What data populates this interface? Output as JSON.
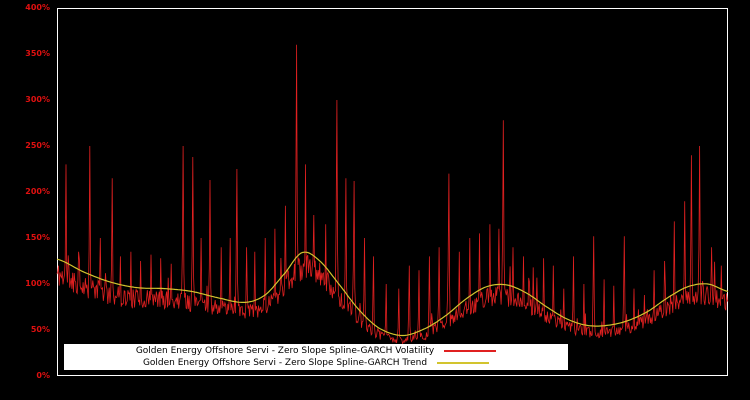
{
  "chart_data": {
    "type": "line",
    "title": "",
    "xlabel": "",
    "ylabel": "",
    "ylim": [
      0,
      400
    ],
    "y_ticks": [
      "0%",
      "50%",
      "100%",
      "150%",
      "200%",
      "250%",
      "300%",
      "350%",
      "400%"
    ],
    "axis_label_color": "#e01010",
    "background": "#000000",
    "frame_color": "#ffffff",
    "legend_position": "bottom-center",
    "grid": false,
    "series": [
      {
        "name": "Golden Energy Offshore Servi - Zero Slope Spline-GARCH Volatility",
        "color": "#e02020"
      },
      {
        "name": "Golden Energy Offshore Servi - Zero Slope Spline-GARCH Trend",
        "color": "#d2c42e"
      }
    ],
    "trend_points": [
      [
        0.0,
        127
      ],
      [
        0.04,
        113
      ],
      [
        0.08,
        102
      ],
      [
        0.12,
        96
      ],
      [
        0.16,
        95
      ],
      [
        0.2,
        92
      ],
      [
        0.24,
        85
      ],
      [
        0.28,
        80
      ],
      [
        0.31,
        88
      ],
      [
        0.34,
        112
      ],
      [
        0.365,
        134
      ],
      [
        0.39,
        126
      ],
      [
        0.42,
        100
      ],
      [
        0.45,
        72
      ],
      [
        0.48,
        52
      ],
      [
        0.515,
        44
      ],
      [
        0.55,
        52
      ],
      [
        0.58,
        66
      ],
      [
        0.61,
        84
      ],
      [
        0.64,
        97
      ],
      [
        0.67,
        99
      ],
      [
        0.7,
        90
      ],
      [
        0.73,
        75
      ],
      [
        0.76,
        62
      ],
      [
        0.79,
        55
      ],
      [
        0.82,
        55
      ],
      [
        0.85,
        60
      ],
      [
        0.88,
        70
      ],
      [
        0.91,
        85
      ],
      [
        0.94,
        97
      ],
      [
        0.97,
        100
      ],
      [
        1.0,
        92
      ]
    ],
    "spikes": [
      [
        0.013,
        230
      ],
      [
        0.032,
        135
      ],
      [
        0.049,
        250
      ],
      [
        0.065,
        150
      ],
      [
        0.082,
        215
      ],
      [
        0.095,
        130
      ],
      [
        0.11,
        135
      ],
      [
        0.125,
        125
      ],
      [
        0.14,
        132
      ],
      [
        0.155,
        128
      ],
      [
        0.17,
        122
      ],
      [
        0.188,
        250
      ],
      [
        0.202,
        238
      ],
      [
        0.215,
        150
      ],
      [
        0.228,
        213
      ],
      [
        0.245,
        140
      ],
      [
        0.258,
        150
      ],
      [
        0.268,
        225
      ],
      [
        0.282,
        140
      ],
      [
        0.295,
        135
      ],
      [
        0.31,
        150
      ],
      [
        0.325,
        160
      ],
      [
        0.34,
        185
      ],
      [
        0.357,
        360
      ],
      [
        0.37,
        230
      ],
      [
        0.383,
        175
      ],
      [
        0.4,
        165
      ],
      [
        0.417,
        300
      ],
      [
        0.43,
        215
      ],
      [
        0.443,
        212
      ],
      [
        0.458,
        150
      ],
      [
        0.472,
        130
      ],
      [
        0.49,
        100
      ],
      [
        0.51,
        95
      ],
      [
        0.525,
        120
      ],
      [
        0.54,
        115
      ],
      [
        0.555,
        130
      ],
      [
        0.57,
        140
      ],
      [
        0.584,
        220
      ],
      [
        0.6,
        135
      ],
      [
        0.615,
        150
      ],
      [
        0.63,
        155
      ],
      [
        0.645,
        165
      ],
      [
        0.658,
        160
      ],
      [
        0.665,
        278
      ],
      [
        0.68,
        140
      ],
      [
        0.695,
        130
      ],
      [
        0.71,
        118
      ],
      [
        0.725,
        128
      ],
      [
        0.74,
        120
      ],
      [
        0.755,
        95
      ],
      [
        0.77,
        130
      ],
      [
        0.785,
        100
      ],
      [
        0.8,
        152
      ],
      [
        0.815,
        105
      ],
      [
        0.83,
        98
      ],
      [
        0.845,
        152
      ],
      [
        0.86,
        95
      ],
      [
        0.875,
        88
      ],
      [
        0.89,
        115
      ],
      [
        0.905,
        125
      ],
      [
        0.92,
        168
      ],
      [
        0.936,
        190
      ],
      [
        0.946,
        240
      ],
      [
        0.958,
        250
      ],
      [
        0.975,
        140
      ],
      [
        0.99,
        120
      ]
    ],
    "noise": {
      "seed": 11,
      "points": 900,
      "base": 0.76,
      "spread": 0.22,
      "burst_prob": 0.06,
      "burst_amp": 0.35
    }
  }
}
